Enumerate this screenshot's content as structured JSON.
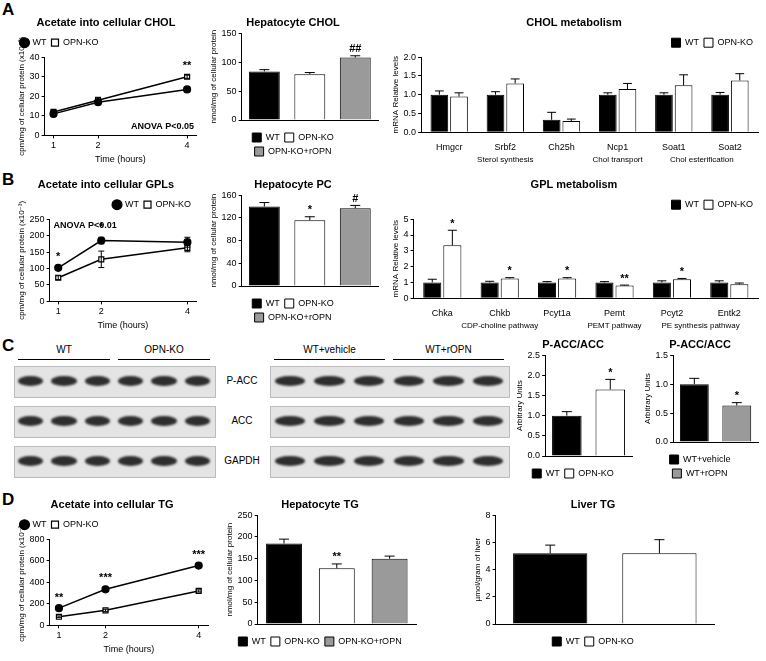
{
  "panel_labels": [
    "A",
    "B",
    "C",
    "D"
  ],
  "chart_data": [
    {
      "type": "line",
      "title": "Acetate into cellular CHOL",
      "ylabel": "cpm/mg of cellular protein (x10⁻³)",
      "xlabel": "Time (hours)",
      "annotation": "ANOVA P<0.05",
      "x": [
        1,
        2,
        4
      ],
      "xlim": [
        0.8,
        4.2
      ],
      "xticks": [
        1,
        2,
        4
      ],
      "ylim": [
        0,
        40
      ],
      "yticks": [
        0,
        10,
        20,
        30,
        40
      ],
      "grid": false,
      "legend": "top left",
      "series": [
        {
          "name": "WT",
          "color": "#000000",
          "marker": "circle",
          "values": [
            11,
            17,
            23.5
          ],
          "errors": [
            0.8,
            1.0,
            0.8
          ],
          "annotations": [
            null,
            null,
            null
          ]
        },
        {
          "name": "OPN-KO",
          "color": "#000000",
          "marker": "open-square",
          "values": [
            12,
            18,
            30
          ],
          "errors": [
            0.8,
            1.5,
            0.8
          ],
          "annotations": [
            null,
            null,
            "**"
          ]
        }
      ]
    },
    {
      "type": "bar",
      "title": "Hepatocyte CHOL",
      "ylabel": "nmol/mg of cellular protein",
      "categories": [
        "WT",
        "OPN-KO",
        "OPN-KO+rOPN"
      ],
      "values": [
        84,
        79,
        108
      ],
      "errors": [
        3,
        3,
        3
      ],
      "annotations": [
        null,
        null,
        "##"
      ],
      "colors": [
        "#000000",
        "#ffffff",
        "#9a9a9a"
      ],
      "ylim": [
        0,
        150
      ],
      "yticks": [
        0,
        50,
        100,
        150
      ],
      "grid": false,
      "legend": "bottom",
      "tick_labels": "y"
    },
    {
      "type": "bar",
      "title": "CHOL metabolism",
      "ylabel": "mRNA Relative levels",
      "categories": [
        "Hmgcr",
        "Srbf2",
        "Ch25h",
        "Ncp1",
        "Soat1",
        "Soat2"
      ],
      "groups": [
        {
          "label": "Sterol synthesis",
          "categories": [
            "Hmgcr",
            "Srbf2",
            "Ch25h"
          ]
        },
        {
          "label": "Chol transport",
          "categories": [
            "Ncp1"
          ]
        },
        {
          "label": "Chol esterification",
          "categories": [
            "Soat1",
            "Soat2"
          ]
        }
      ],
      "series": [
        {
          "name": "WT",
          "color": "#000000",
          "values": [
            1.0,
            1.0,
            0.33,
            1.0,
            1.0,
            1.0
          ],
          "errors": [
            0.1,
            0.08,
            0.2,
            0.05,
            0.05,
            0.06
          ]
        },
        {
          "name": "OPN-KO",
          "color": "#ffffff",
          "values": [
            0.95,
            1.3,
            0.3,
            1.15,
            1.25,
            1.38
          ],
          "errors": [
            0.1,
            0.12,
            0.05,
            0.15,
            0.28,
            0.18
          ]
        }
      ],
      "ylim": [
        0,
        2
      ],
      "yticks": [
        {
          "value": 0,
          "label": "0.0"
        },
        0.5,
        {
          "value": 1,
          "label": "1.0"
        },
        1.5,
        {
          "value": 2,
          "label": "2.0"
        }
      ],
      "grid": false,
      "legend": "top right"
    },
    {
      "type": "line",
      "title": "Acetate into cellular GPLs",
      "ylabel": "cpm/mg of cellular protein (x10⁻³)",
      "xlabel": "Time (hours)",
      "annotation": "ANOVA P<0.01",
      "x": [
        1,
        2,
        4
      ],
      "xlim": [
        0.8,
        4.2
      ],
      "xticks": [
        1,
        2,
        4
      ],
      "ylim": [
        0,
        250
      ],
      "yticks": [
        0,
        50,
        100,
        150,
        200,
        250
      ],
      "grid": false,
      "legend": "top right",
      "series": [
        {
          "name": "WT",
          "color": "#000000",
          "marker": "circle",
          "values": [
            102,
            185,
            180
          ],
          "errors": [
            5,
            10,
            15
          ],
          "annotations": [
            "*",
            "*",
            null
          ]
        },
        {
          "name": "OPN-KO",
          "color": "#000000",
          "marker": "open-square",
          "values": [
            72,
            128,
            163
          ],
          "errors": [
            6,
            25,
            12
          ],
          "annotations": [
            null,
            null,
            null
          ]
        }
      ]
    },
    {
      "type": "bar",
      "title": "Hepatocyte PC",
      "ylabel": "nmol/mg of cellular protein",
      "categories": [
        "WT",
        "OPN-KO",
        "OPN-KO+rOPN"
      ],
      "values": [
        140,
        116,
        137
      ],
      "errors": [
        7,
        6,
        5
      ],
      "annotations": [
        null,
        "*",
        "#"
      ],
      "colors": [
        "#000000",
        "#ffffff",
        "#9a9a9a"
      ],
      "ylim": [
        0,
        160
      ],
      "yticks": [
        0,
        40,
        80,
        120,
        160
      ],
      "grid": false,
      "legend": "bottom",
      "tick_labels": "y"
    },
    {
      "type": "bar",
      "title": "GPL metabolism",
      "ylabel": "mRNA Relative levels",
      "categories": [
        "Chka",
        "Chkb",
        "Pcyt1a",
        "Pemt",
        "Pcyt2",
        "Entk2"
      ],
      "groups": [
        {
          "label": "CDP-choline pathway",
          "categories": [
            "Chka",
            "Chkb",
            "Pcyt1a"
          ]
        },
        {
          "label": "PEMT pathway",
          "categories": [
            "Pemt"
          ]
        },
        {
          "label": "PE synthesis pathway",
          "categories": [
            "Pcyt2",
            "Entk2"
          ]
        }
      ],
      "series": [
        {
          "name": "WT",
          "color": "#000000",
          "values": [
            1,
            1,
            1,
            1,
            1,
            1
          ],
          "errors": [
            0.2,
            0.07,
            0.05,
            0.05,
            0.1,
            0.1
          ]
        },
        {
          "name": "OPN-KO",
          "color": "#ffffff",
          "values": [
            3.35,
            1.25,
            1.25,
            0.8,
            1.2,
            0.88
          ],
          "errors": [
            0.95,
            0.05,
            0.05,
            0.03,
            0.05,
            0.08
          ],
          "annotations": [
            "*",
            "*",
            "*",
            "**",
            "*",
            null
          ]
        }
      ],
      "ylim": [
        0,
        5
      ],
      "yticks": [
        0,
        1,
        2,
        3,
        4,
        5
      ],
      "grid": false,
      "legend": "top right"
    },
    {
      "type": "bar",
      "title": "P-ACC/ACC",
      "ylabel": "Arbitrary Units",
      "categories": [
        "WT",
        "OPN-KO"
      ],
      "values": [
        1.0,
        1.65
      ],
      "errors": [
        0.1,
        0.25
      ],
      "annotations": [
        null,
        "*"
      ],
      "colors": [
        "#000000",
        "#ffffff"
      ],
      "ylim": [
        0,
        2.5
      ],
      "yticks": [
        {
          "value": 0,
          "label": "0.0"
        },
        0.5,
        {
          "value": 1,
          "label": "1.0"
        },
        1.5,
        {
          "value": 2,
          "label": "2.0"
        },
        2.5
      ],
      "grid": false,
      "legend": "bottom",
      "tick_labels": "y"
    },
    {
      "type": "bar",
      "title": "P-ACC/ACC",
      "ylabel": "Arbitrary Units",
      "categories": [
        "WT+vehicle",
        "WT+rOPN"
      ],
      "values": [
        1.0,
        0.63
      ],
      "errors": [
        0.1,
        0.05
      ],
      "annotations": [
        null,
        "*"
      ],
      "colors": [
        "#000000",
        "#9a9a9a"
      ],
      "ylim": [
        0,
        1.5
      ],
      "yticks": [
        {
          "value": 0,
          "label": "0.0"
        },
        0.5,
        {
          "value": 1,
          "label": "1.0"
        },
        1.5
      ],
      "grid": false,
      "legend": "bottom",
      "tick_labels": "y"
    },
    {
      "type": "line",
      "title": "Acetate into cellular TG",
      "ylabel": "cpm/mg of cellular protein (x10⁻³)",
      "xlabel": "Time (hours)",
      "x": [
        1,
        2,
        4
      ],
      "xlim": [
        0.8,
        4.2
      ],
      "xticks": [
        1,
        2,
        4
      ],
      "ylim": [
        0,
        800
      ],
      "yticks": [
        0,
        200,
        400,
        600,
        800
      ],
      "grid": false,
      "legend": "top left",
      "series": [
        {
          "name": "WT",
          "color": "#000000",
          "marker": "circle",
          "values": [
            160,
            335,
            555
          ],
          "errors": [
            10,
            15,
            15
          ],
          "annotations": [
            "**",
            "***",
            "***"
          ]
        },
        {
          "name": "OPN-KO",
          "color": "#000000",
          "marker": "open-square",
          "values": [
            80,
            140,
            320
          ],
          "errors": [
            8,
            10,
            10
          ],
          "annotations": [
            null,
            null,
            null
          ]
        }
      ]
    },
    {
      "type": "bar",
      "title": "Hepatocyte TG",
      "ylabel": "nmol/mg of cellular protein",
      "categories": [
        "WT",
        "OPN-KO",
        "OPN-KO+rOPN"
      ],
      "values": [
        185,
        128,
        150
      ],
      "errors": [
        10,
        10,
        6
      ],
      "annotations": [
        null,
        "**",
        null
      ],
      "colors": [
        "#000000",
        "#ffffff",
        "#9a9a9a"
      ],
      "ylim": [
        0,
        250
      ],
      "yticks": [
        0,
        50,
        100,
        150,
        200,
        250
      ],
      "grid": false,
      "legend": "bottom",
      "tick_labels": "y"
    },
    {
      "type": "bar",
      "title": "Liver TG",
      "ylabel": "µmol/gram of liver",
      "categories": [
        "WT",
        "OPN-KO"
      ],
      "values": [
        5.2,
        5.2
      ],
      "errors": [
        0.6,
        1.0
      ],
      "annotations": [
        null,
        null
      ],
      "colors": [
        "#000000",
        "#ffffff"
      ],
      "ylim": [
        0,
        8
      ],
      "yticks": [
        0,
        2,
        4,
        6,
        8
      ],
      "grid": false,
      "legend": "bottom",
      "tick_labels": "y"
    }
  ],
  "blot": {
    "left_groups": [
      "WT",
      "OPN-KO"
    ],
    "right_groups": [
      "WT+vehicle",
      "WT+rOPN"
    ],
    "rows": [
      "P-ACC",
      "ACC",
      "GAPDH"
    ]
  }
}
